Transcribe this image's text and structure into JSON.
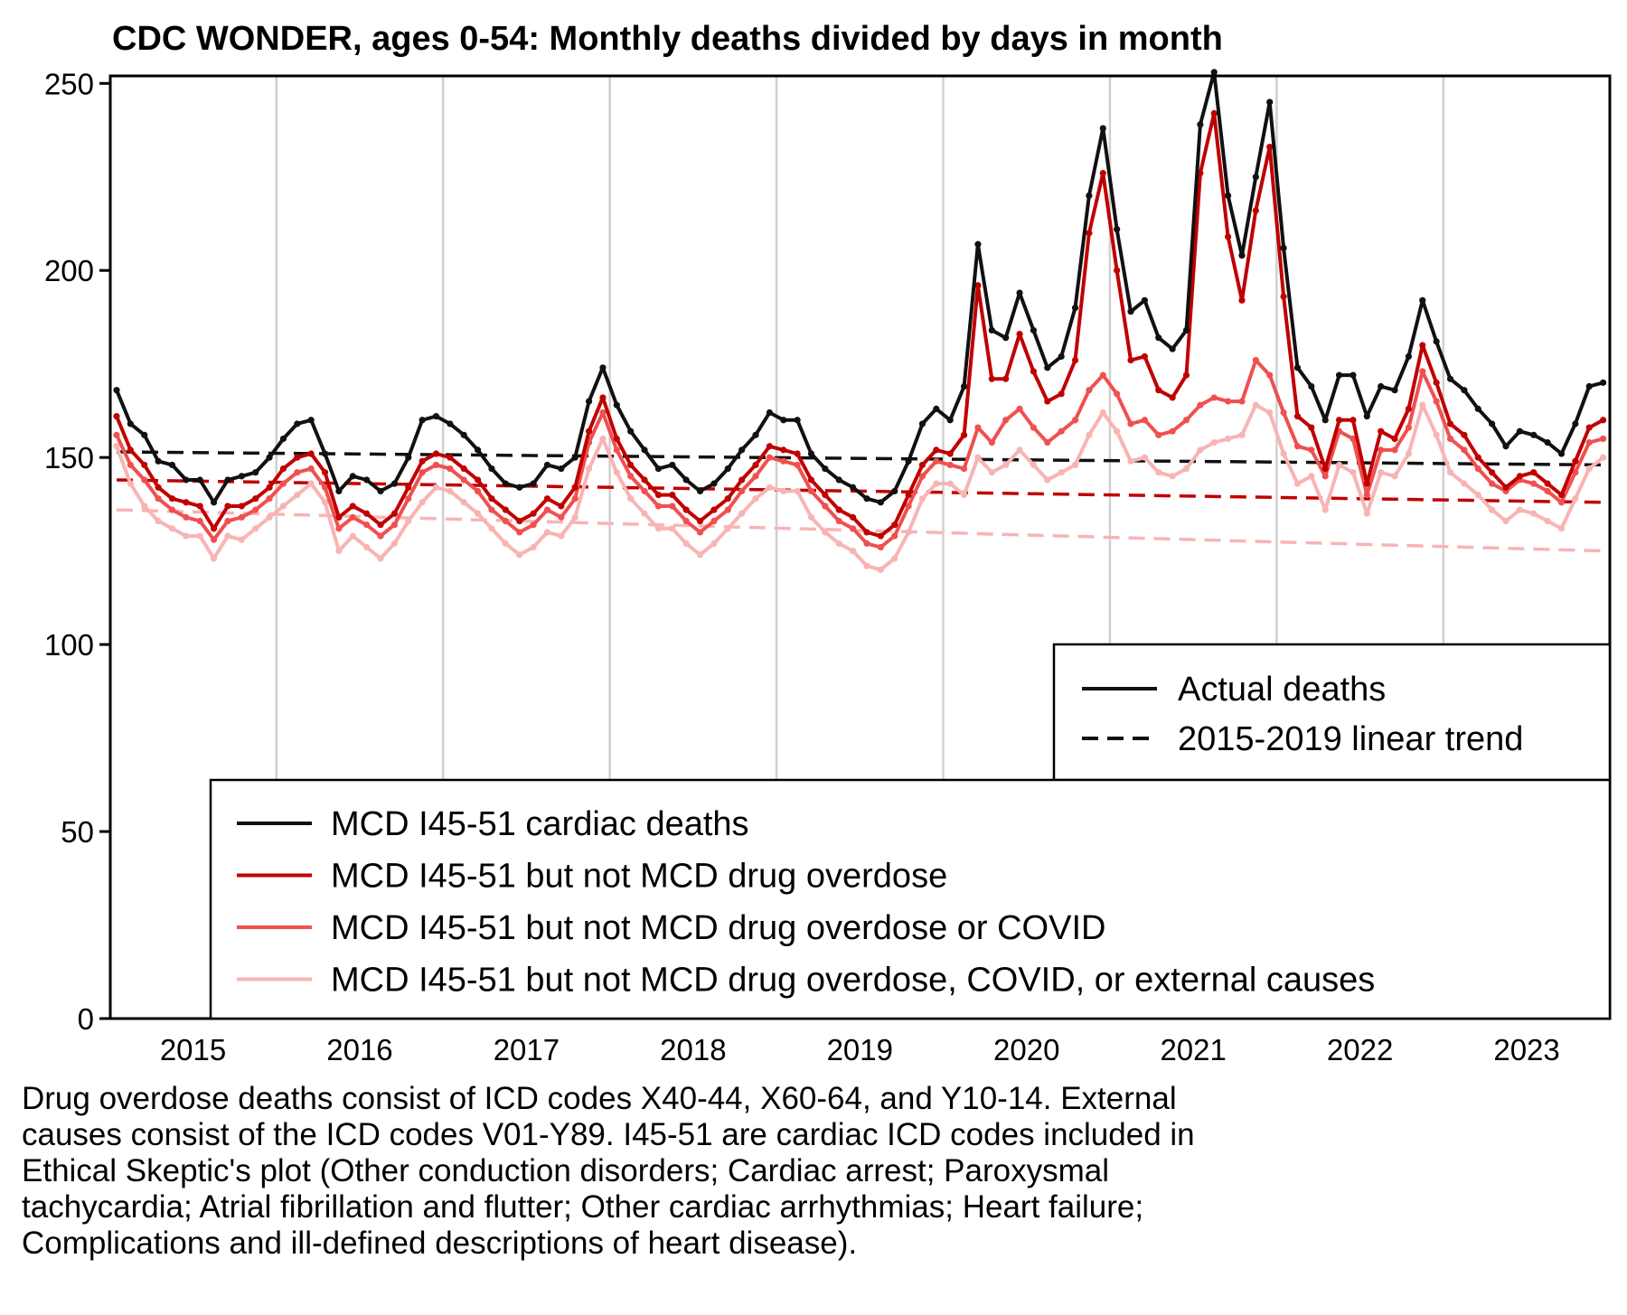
{
  "chart_data": {
    "type": "line",
    "title": "CDC WONDER, ages 0-54: Monthly deaths divided by days in month",
    "xlabel": "",
    "ylabel": "",
    "ylim": [
      0,
      252
    ],
    "xlim": [
      "2015-01",
      "2023-12"
    ],
    "yticks": [
      "0",
      "50",
      "100",
      "150",
      "200",
      "250"
    ],
    "xticks": [
      "2015",
      "2016",
      "2017",
      "2018",
      "2019",
      "2020",
      "2021",
      "2022",
      "2023"
    ],
    "grid": "vertical lines at year boundaries",
    "x": [
      "2015-01",
      "2015-02",
      "2015-03",
      "2015-04",
      "2015-05",
      "2015-06",
      "2015-07",
      "2015-08",
      "2015-09",
      "2015-10",
      "2015-11",
      "2015-12",
      "2016-01",
      "2016-02",
      "2016-03",
      "2016-04",
      "2016-05",
      "2016-06",
      "2016-07",
      "2016-08",
      "2016-09",
      "2016-10",
      "2016-11",
      "2016-12",
      "2017-01",
      "2017-02",
      "2017-03",
      "2017-04",
      "2017-05",
      "2017-06",
      "2017-07",
      "2017-08",
      "2017-09",
      "2017-10",
      "2017-11",
      "2017-12",
      "2018-01",
      "2018-02",
      "2018-03",
      "2018-04",
      "2018-05",
      "2018-06",
      "2018-07",
      "2018-08",
      "2018-09",
      "2018-10",
      "2018-11",
      "2018-12",
      "2019-01",
      "2019-02",
      "2019-03",
      "2019-04",
      "2019-05",
      "2019-06",
      "2019-07",
      "2019-08",
      "2019-09",
      "2019-10",
      "2019-11",
      "2019-12",
      "2020-01",
      "2020-02",
      "2020-03",
      "2020-04",
      "2020-05",
      "2020-06",
      "2020-07",
      "2020-08",
      "2020-09",
      "2020-10",
      "2020-11",
      "2020-12",
      "2021-01",
      "2021-02",
      "2021-03",
      "2021-04",
      "2021-05",
      "2021-06",
      "2021-07",
      "2021-08",
      "2021-09",
      "2021-10",
      "2021-11",
      "2021-12",
      "2022-01",
      "2022-02",
      "2022-03",
      "2022-04",
      "2022-05",
      "2022-06",
      "2022-07",
      "2022-08",
      "2022-09",
      "2022-10",
      "2022-11",
      "2022-12",
      "2023-01",
      "2023-02",
      "2023-03",
      "2023-04",
      "2023-05",
      "2023-06",
      "2023-07",
      "2023-08",
      "2023-09",
      "2023-10",
      "2023-11",
      "2023-12"
    ],
    "series": [
      {
        "name": "MCD I45-51 cardiac deaths",
        "color": "#111111",
        "style": "solid",
        "values": [
          168,
          159,
          156,
          149,
          148,
          144,
          144,
          138,
          144,
          145,
          146,
          150,
          155,
          159,
          160,
          151,
          141,
          145,
          144,
          141,
          143,
          150,
          160,
          161,
          159,
          156,
          152,
          147,
          143,
          142,
          143,
          148,
          147,
          150,
          165,
          174,
          164,
          157,
          152,
          147,
          148,
          144,
          141,
          143,
          147,
          152,
          156,
          162,
          160,
          160,
          151,
          147,
          144,
          142,
          139,
          138,
          141,
          149,
          159,
          163,
          160,
          169,
          207,
          184,
          182,
          194,
          184,
          174,
          177,
          190,
          220,
          238,
          211,
          189,
          192,
          182,
          179,
          184,
          239,
          253,
          220,
          204,
          225,
          245,
          206,
          174,
          169,
          160,
          172,
          172,
          161,
          169,
          168,
          177,
          192,
          181,
          171,
          168,
          163,
          159,
          153,
          157,
          156,
          154,
          151,
          159,
          169,
          170
        ]
      },
      {
        "name": "MCD I45-51 but not MCD drug overdose",
        "color": "#c00000",
        "style": "solid",
        "values": [
          161,
          152,
          148,
          142,
          139,
          138,
          137,
          131,
          137,
          137,
          139,
          142,
          147,
          150,
          151,
          146,
          134,
          137,
          135,
          132,
          135,
          142,
          149,
          151,
          150,
          147,
          144,
          139,
          136,
          133,
          135,
          139,
          137,
          142,
          157,
          166,
          155,
          148,
          144,
          140,
          140,
          136,
          133,
          136,
          139,
          144,
          148,
          153,
          152,
          151,
          144,
          140,
          136,
          134,
          130,
          129,
          132,
          140,
          148,
          152,
          151,
          156,
          196,
          171,
          171,
          183,
          173,
          165,
          167,
          176,
          210,
          226,
          200,
          176,
          177,
          168,
          166,
          172,
          226,
          242,
          209,
          192,
          216,
          233,
          193,
          161,
          158,
          147,
          160,
          160,
          143,
          157,
          155,
          163,
          180,
          170,
          159,
          156,
          150,
          146,
          142,
          145,
          146,
          143,
          140,
          149,
          158,
          160
        ]
      },
      {
        "name": "MCD I45-51 but not MCD drug overdose or COVID",
        "color": "#f05050",
        "style": "solid",
        "values": [
          156,
          148,
          144,
          139,
          136,
          134,
          133,
          128,
          133,
          134,
          136,
          139,
          143,
          146,
          147,
          142,
          131,
          134,
          132,
          129,
          132,
          139,
          146,
          148,
          147,
          144,
          141,
          136,
          133,
          130,
          132,
          136,
          134,
          139,
          154,
          162,
          152,
          145,
          141,
          137,
          137,
          133,
          130,
          133,
          136,
          141,
          145,
          150,
          149,
          148,
          141,
          137,
          133,
          131,
          127,
          126,
          129,
          137,
          145,
          149,
          148,
          147,
          158,
          154,
          160,
          163,
          158,
          154,
          157,
          160,
          168,
          172,
          167,
          159,
          160,
          156,
          157,
          160,
          164,
          166,
          165,
          165,
          176,
          172,
          162,
          153,
          152,
          145,
          157,
          155,
          140,
          152,
          152,
          158,
          173,
          165,
          155,
          152,
          147,
          143,
          141,
          144,
          143,
          141,
          138,
          146,
          154,
          155
        ]
      },
      {
        "name": "MCD I45-51 but not MCD drug overdose, COVID, or external causes",
        "color": "#f8b4b4",
        "style": "solid",
        "values": [
          153,
          143,
          137,
          133,
          131,
          129,
          129,
          123,
          129,
          128,
          131,
          134,
          137,
          140,
          143,
          138,
          125,
          129,
          126,
          123,
          127,
          133,
          138,
          142,
          141,
          138,
          135,
          131,
          127,
          124,
          126,
          130,
          129,
          134,
          147,
          155,
          146,
          139,
          135,
          131,
          131,
          127,
          124,
          127,
          131,
          135,
          139,
          142,
          141,
          141,
          134,
          130,
          127,
          125,
          121,
          120,
          123,
          130,
          139,
          143,
          143,
          140,
          150,
          146,
          148,
          152,
          148,
          144,
          146,
          148,
          156,
          162,
          157,
          149,
          150,
          146,
          145,
          147,
          152,
          154,
          155,
          156,
          164,
          162,
          151,
          143,
          145,
          136,
          148,
          146,
          135,
          146,
          145,
          151,
          164,
          156,
          146,
          143,
          140,
          136,
          133,
          136,
          135,
          133,
          131,
          139,
          147,
          150
        ]
      }
    ],
    "trend_lines": [
      {
        "name": "MCD I45-51 cardiac deaths trend",
        "color": "#111111",
        "style": "dashed",
        "x": [
          "2015-01",
          "2023-12"
        ],
        "values": [
          151.5,
          148.0
        ]
      },
      {
        "name": "MCD I45-51 but not MCD drug overdose trend",
        "color": "#c00000",
        "style": "dashed",
        "x": [
          "2015-01",
          "2023-12"
        ],
        "values": [
          144,
          138
        ]
      },
      {
        "name": "MCD I45-51 but not MCD drug overdose, COVID, or external causes trend",
        "color": "#f8b4b4",
        "style": "dashed",
        "x": [
          "2015-01",
          "2023-12"
        ],
        "values": [
          136,
          125
        ]
      }
    ],
    "legend_style": {
      "position": "right",
      "entries": [
        {
          "label": "Actual deaths",
          "style": "solid",
          "color": "#111111"
        },
        {
          "label": "2015-2019 linear trend",
          "style": "dashed",
          "color": "#111111"
        }
      ]
    },
    "legend_series": {
      "position": "bottom-right",
      "entries": [
        {
          "label": "MCD I45-51 cardiac deaths",
          "color": "#111111"
        },
        {
          "label": "MCD I45-51 but not MCD drug overdose",
          "color": "#c00000"
        },
        {
          "label": "MCD I45-51 but not MCD drug overdose or COVID",
          "color": "#f05050"
        },
        {
          "label": "MCD I45-51 but not MCD drug overdose, COVID, or external causes",
          "color": "#f8b4b4"
        }
      ]
    }
  },
  "caption": {
    "lines": [
      "Drug overdose deaths consist of ICD codes X40-44, X60-64, and Y10-14. External",
      "causes consist of the ICD codes V01-Y89. I45-51 are cardiac ICD codes included in",
      "Ethical Skeptic's plot (Other conduction disorders; Cardiac arrest; Paroxysmal",
      "tachycardia; Atrial fibrillation and flutter; Other cardiac arrhythmias; Heart failure;",
      "Complications and ill-defined descriptions of heart disease)."
    ]
  }
}
